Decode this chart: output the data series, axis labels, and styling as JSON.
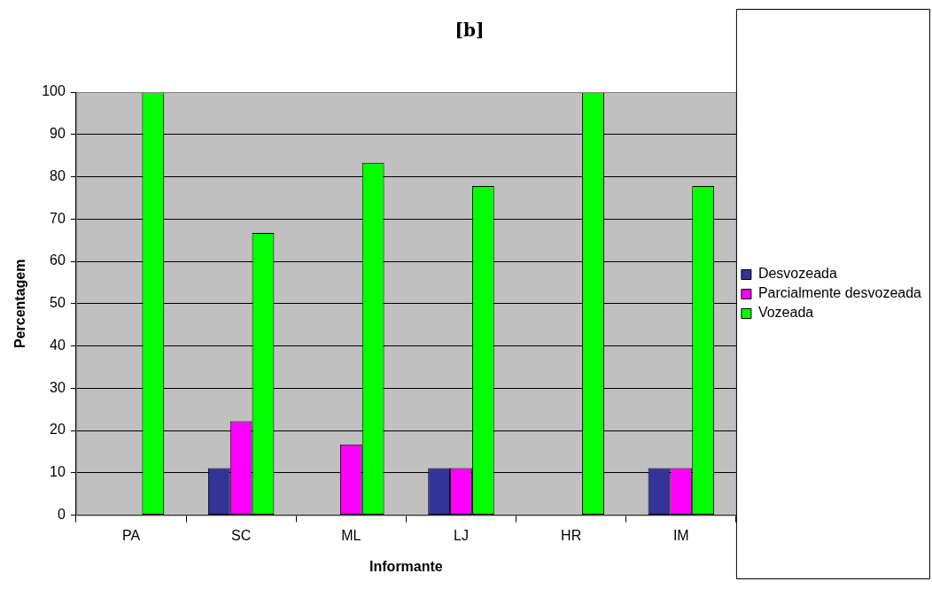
{
  "chart_data": {
    "type": "bar",
    "title": "[b]",
    "xlabel": "Informante",
    "ylabel": "Percentagem",
    "categories": [
      "PA",
      "SC",
      "ML",
      "LJ",
      "HR",
      "IM"
    ],
    "series": [
      {
        "name": "Desvozeada",
        "color": "#333399",
        "values": [
          0,
          11.1,
          0,
          11.1,
          0,
          11.1
        ]
      },
      {
        "name": "Parcialmente desvozeada",
        "color": "#ff00ff",
        "values": [
          0,
          22.2,
          16.7,
          11.1,
          0,
          11.1
        ]
      },
      {
        "name": "Vozeada",
        "color": "#00ff00",
        "values": [
          100,
          66.7,
          83.3,
          77.8,
          100,
          77.8
        ]
      }
    ],
    "ylim": [
      0,
      100
    ],
    "yticks": [
      0,
      10,
      20,
      30,
      40,
      50,
      60,
      70,
      80,
      90,
      100
    ],
    "grid": "y",
    "legend": "right"
  }
}
